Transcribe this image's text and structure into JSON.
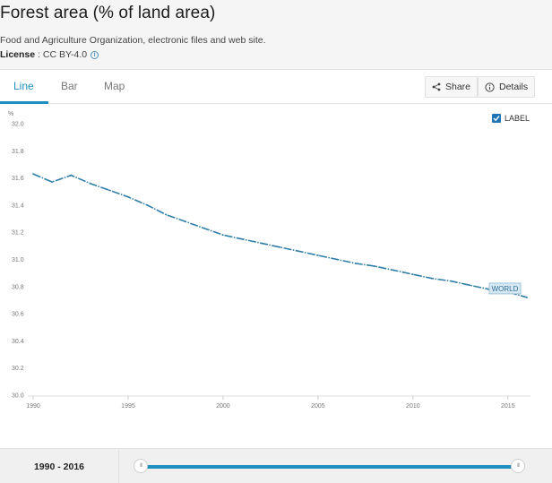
{
  "page": {
    "title": "Forest area (% of land area)",
    "source": "Food and Agriculture Organization, electronic files and web site.",
    "license_key": "License",
    "license_value": " : CC BY-4.0"
  },
  "tabs": [
    {
      "label": "Line",
      "active": true
    },
    {
      "label": "Bar",
      "active": false
    },
    {
      "label": "Map",
      "active": false
    }
  ],
  "toolbar": {
    "share_label": "Share",
    "details_label": "Details"
  },
  "label_toggle": {
    "label": "LABEL",
    "checked": true
  },
  "chart_data": {
    "type": "line",
    "ylabel": "%",
    "ylim": [
      30.0,
      32.0
    ],
    "yticks": [
      "30.0",
      "30.2",
      "30.4",
      "30.6",
      "30.8",
      "31.0",
      "31.2",
      "31.4",
      "31.6",
      "31.8",
      "32.0"
    ],
    "xlim": [
      1990,
      2016
    ],
    "xticks": [
      "1990",
      "1995",
      "2000",
      "2005",
      "2010",
      "2015"
    ],
    "grid": false,
    "series": [
      {
        "name": "WORLD",
        "color": "#2f7ea8",
        "x": [
          1990,
          1991,
          1992,
          1993,
          1994,
          1995,
          1996,
          1997,
          1998,
          1999,
          2000,
          2001,
          2002,
          2003,
          2004,
          2005,
          2006,
          2007,
          2008,
          2009,
          2010,
          2011,
          2012,
          2013,
          2014,
          2015,
          2016
        ],
        "y": [
          31.63,
          31.57,
          31.62,
          31.56,
          31.51,
          31.46,
          31.4,
          31.33,
          31.28,
          31.23,
          31.18,
          31.15,
          31.12,
          31.09,
          31.06,
          31.03,
          31.0,
          30.97,
          30.95,
          30.92,
          30.89,
          30.86,
          30.84,
          30.81,
          30.78,
          30.76,
          30.72
        ]
      }
    ]
  },
  "range": {
    "label": "1990 - 2016",
    "start_fraction": 0.0,
    "end_fraction": 1.0
  }
}
